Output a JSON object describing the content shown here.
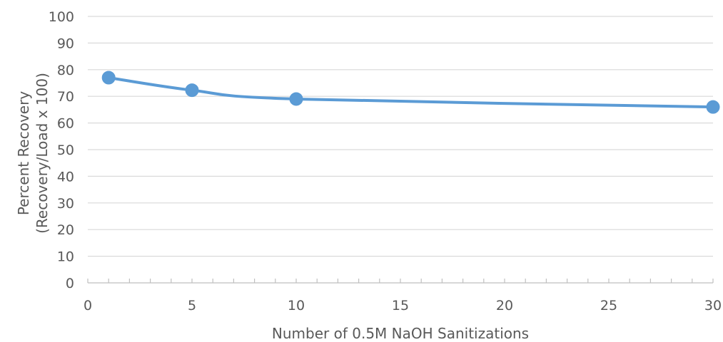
{
  "chart_data": {
    "type": "line",
    "title": "",
    "xlabel": "Number of 0.5M NaOH Sanitizations",
    "ylabel_line1": "Percent Recovery",
    "ylabel_line2": "(Recovery/Load x 100)",
    "xlim": [
      0,
      30
    ],
    "ylim": [
      0,
      100
    ],
    "x_ticks": [
      0,
      5,
      10,
      15,
      20,
      25,
      30
    ],
    "y_ticks": [
      0,
      10,
      20,
      30,
      40,
      50,
      60,
      70,
      80,
      90,
      100
    ],
    "x_minor_step": 1,
    "grid": true,
    "smooth": true,
    "line_color": "#5B9BD5",
    "grid_color": "#D9D9D9",
    "axis_color": "#BFBFBF",
    "series": [
      {
        "x": [
          1,
          5,
          10,
          30
        ],
        "y": [
          77,
          72.3,
          69,
          66
        ]
      }
    ]
  }
}
